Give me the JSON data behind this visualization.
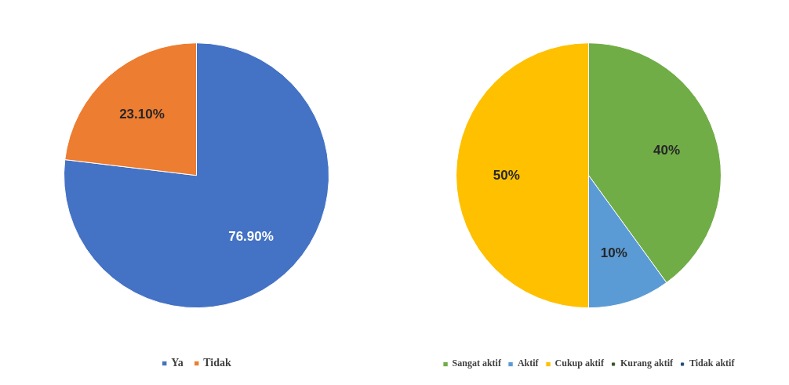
{
  "chart_data": [
    {
      "type": "pie",
      "categories": [
        "Ya",
        "Tidak"
      ],
      "values": [
        76.9,
        23.1
      ],
      "colors": [
        "#4472c4",
        "#ed7d31"
      ],
      "value_labels": [
        "76.90%",
        "23.10%"
      ],
      "legend": "bottom"
    },
    {
      "type": "pie",
      "categories": [
        "Sangat aktif",
        "Aktif",
        "Cukup aktif",
        "Kurang aktif",
        "Tidak aktif"
      ],
      "values": [
        40,
        10,
        50,
        0,
        0
      ],
      "colors": [
        "#70ad47",
        "#5b9bd5",
        "#ffc000",
        "#375623",
        "#1f4e79"
      ],
      "value_labels": [
        "40%",
        "10%",
        "50%",
        null,
        null
      ],
      "legend": "bottom"
    }
  ]
}
